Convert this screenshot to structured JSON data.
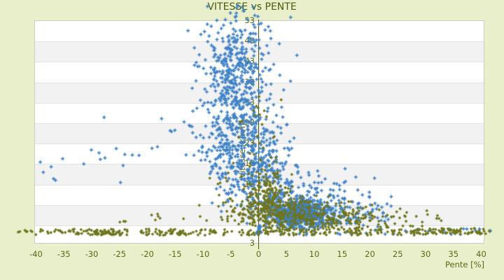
{
  "colors": {
    "background": "#e9efcb",
    "plot_white": "#ffffff",
    "band_gray": "#f2f2f2",
    "grid_line": "#e3e3e3",
    "plot_border": "#cccccc",
    "axis_line": "#4a5712",
    "text": "#5a6816",
    "title_text": "#4c5c10",
    "series_blue": "#3f81c6",
    "series_olive": "#6f751c"
  },
  "chart_data": {
    "type": "scatter",
    "title": "VITESSE vs PENTE",
    "xlabel": "Pente [%]",
    "ylabel": "Vitesse [km/h]",
    "xlim": [
      -40,
      40
    ],
    "ylim": [
      3,
      53
    ],
    "x_ticks": [
      -40,
      -35,
      -30,
      -25,
      -20,
      -15,
      -10,
      -5,
      0,
      5,
      10,
      15,
      20,
      25,
      30,
      35,
      40
    ],
    "y_ticks": [
      53,
      48,
      43,
      38,
      33,
      28,
      23,
      18,
      13,
      8
    ],
    "y_axis_end_label": "3",
    "grid": "alternating horizontal bands, vertical value-axis line at x=0, no legend",
    "points_not_clipped_to_plot": true,
    "seed": 1234,
    "series": [
      {
        "name": "vitesse-points-blue",
        "marker": "plus",
        "color": "#3f81c6",
        "clusters": [
          {
            "n": 420,
            "x": [
              "n",
              -4.2,
              2.7
            ],
            "y": [
              "n",
              40,
              7.6
            ],
            "yclip": [
              6,
              58.7
            ]
          },
          {
            "n": 330,
            "x": [
              "n",
              -3,
              4.3
            ],
            "y": [
              "n",
              24,
              6
            ],
            "yclip": [
              4,
              58
            ]
          },
          {
            "n": 190,
            "x": [
              "n",
              0,
              3.6
            ],
            "y": [
              "n",
              15,
              4
            ],
            "yclip": [
              3,
              58
            ]
          },
          {
            "n": 560,
            "x": [
              "n",
              7.6,
              2.8
            ],
            "y": [
              "n",
              5.8,
              1.8
            ],
            "xclip": [
              -2,
              18
            ],
            "yclip": [
              2.2,
              11
            ]
          },
          {
            "n": 190,
            "x": [
              "n",
              8,
              5.5
            ],
            "y": [
              "n",
              8.5,
              3.5
            ],
            "xclip": [
              -4,
              23
            ],
            "yclip": [
              2.5,
              20
            ]
          },
          {
            "n": 55,
            "x": [
              "u",
              13,
              24
            ],
            "y": [
              "n",
              6,
              2.5
            ],
            "yclip": [
              2.5,
              12
            ]
          },
          {
            "n": 22,
            "x": [
              "u",
              -40,
              -11
            ],
            "y": [
              "n",
              20,
              5
            ]
          },
          {
            "n": 26,
            "x": [
              "n",
              0,
              0.2
            ],
            "y": [
              "u",
              0.8,
              3
            ]
          },
          {
            "n": 34,
            "x": [
              "u",
              3,
              42
            ],
            "y": [
              "u",
              0.7,
              2.2
            ]
          },
          {
            "n": 16,
            "x": [
              "n",
              2,
              3
            ],
            "y": [
              "n",
              45,
              5
            ],
            "yclip": [
              35,
              58.5
            ]
          }
        ]
      },
      {
        "name": "vitesse-points-olive",
        "marker": "diamond",
        "color": "#6f751c",
        "clusters": [
          {
            "n": 230,
            "x": [
              "u",
              -30,
              30
            ],
            "y": [
              "u",
              0.6,
              2.1
            ]
          },
          {
            "n": 60,
            "x": [
              "u",
              -42,
              -25
            ],
            "y": [
              "u",
              0.7,
              2.1
            ]
          },
          {
            "n": 70,
            "x": [
              "u",
              28,
              41.5
            ],
            "y": [
              "u",
              0.8,
              2.3
            ]
          },
          {
            "n": 42,
            "x": [
              "u",
              -26,
              34
            ],
            "y": [
              "u",
              3.8,
              5.8
            ]
          },
          {
            "n": 265,
            "x": [
              "n",
              1.8,
              2.1
            ],
            "y": [
              "n",
              8,
              4.5
            ],
            "yclip": [
              1.5,
              25
            ]
          },
          {
            "n": 205,
            "x": [
              "n",
              7.6,
              3.2
            ],
            "y": [
              "n",
              5.5,
              2.2
            ],
            "yclip": [
              1.8,
              11
            ]
          },
          {
            "n": 115,
            "x": [
              "n",
              17,
              5.5
            ],
            "y": [
              "n",
              4,
              2
            ],
            "xclip": [
              9,
              35
            ],
            "yclip": [
              1,
              9
            ]
          },
          {
            "n": 22,
            "x": [
              "n",
              0.8,
              2.2
            ],
            "y": [
              "u",
              18,
              35
            ]
          },
          {
            "n": 55,
            "x": [
              "n",
              -3.2,
              2.6
            ],
            "y": [
              "n",
              8,
              4
            ],
            "yclip": [
              2,
              20
            ]
          },
          {
            "n": 3,
            "x": [
              "u",
              -43.5,
              -41.5
            ],
            "y": [
              "u",
              1.3,
              2
            ]
          }
        ]
      }
    ]
  }
}
